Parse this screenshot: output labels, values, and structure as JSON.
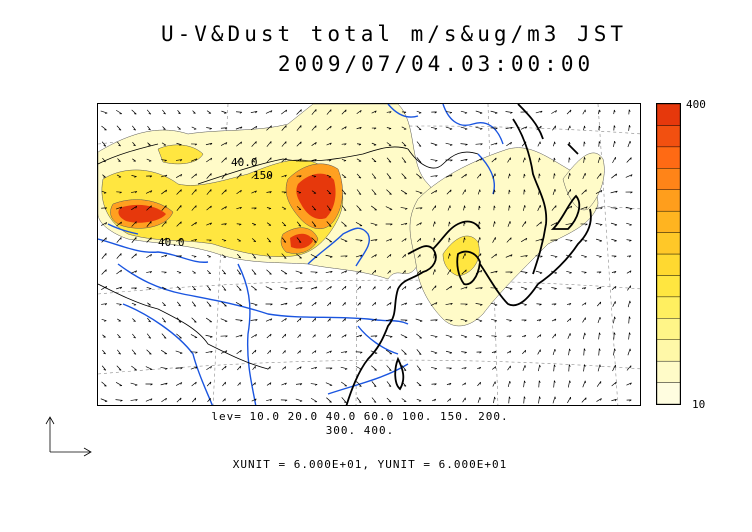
{
  "title": {
    "line1": "U-V&Dust total m/s&ug/m3 JST",
    "line2": "2009/07/04.03:00:00"
  },
  "colorbar": {
    "max_label": "400",
    "min_label": "10",
    "colors": [
      "#fffde0",
      "#fffbc8",
      "#fff8a8",
      "#fff588",
      "#ffef60",
      "#ffe640",
      "#ffd930",
      "#ffc828",
      "#ffb420",
      "#ff9e1c",
      "#ff8418",
      "#ff6a14",
      "#f25010",
      "#e6380c"
    ]
  },
  "map_labels": [
    {
      "text": "40.0"
    },
    {
      "text": "150"
    },
    {
      "text": "40.0"
    }
  ],
  "legend": {
    "lev_line1": "lev= 10.0 20.0 40.0 60.0 100. 150. 200.",
    "lev_line2": "300. 400."
  },
  "units": "XUNIT = 6.000E+01, YUNIT = 6.000E+01",
  "colors": {
    "rivers": "#1a55e0",
    "coast": "#000000",
    "dust_low": "#fffbc8",
    "dust_mid": "#ffe640",
    "dust_high": "#e6380c"
  }
}
